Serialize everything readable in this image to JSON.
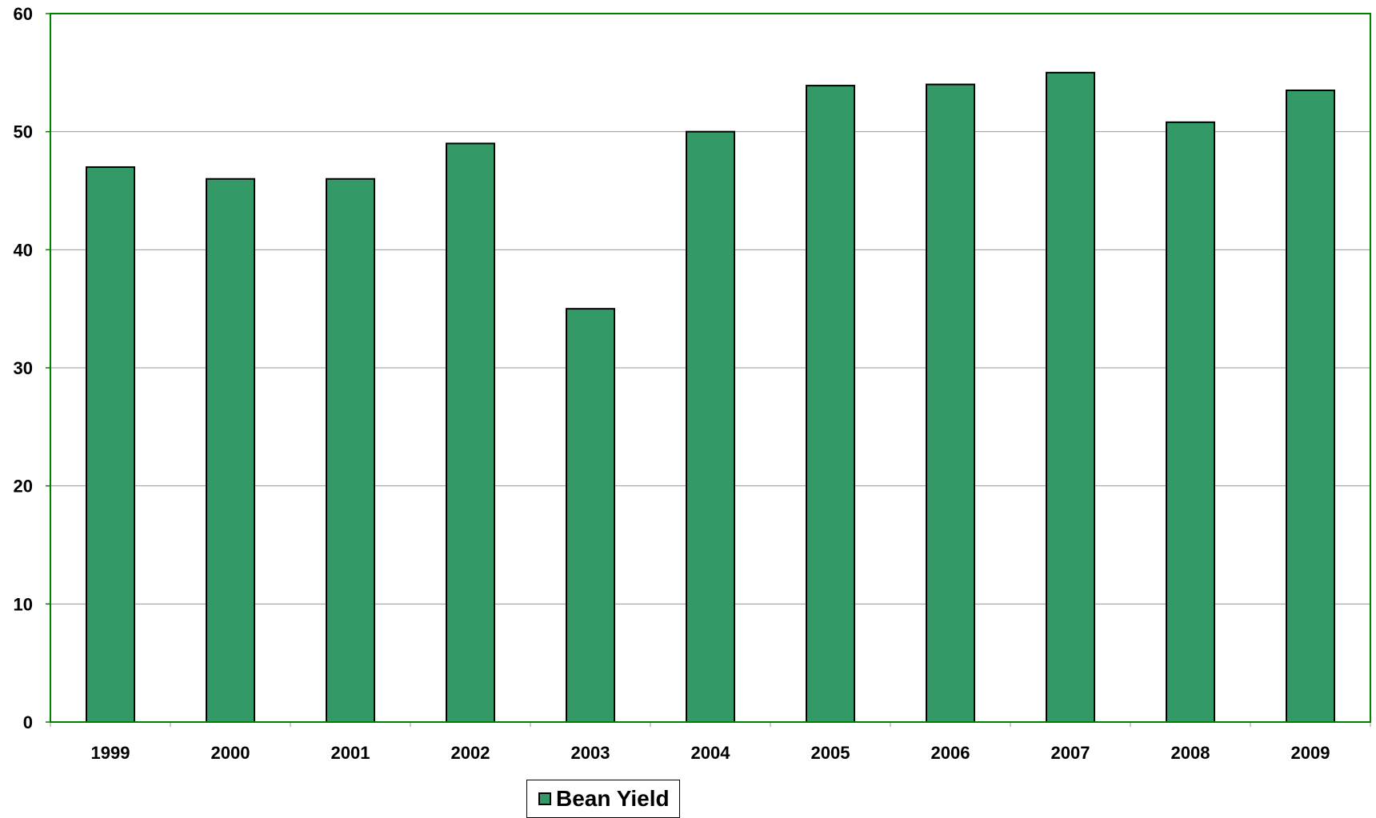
{
  "chart_data": {
    "type": "bar",
    "title": "",
    "xlabel": "",
    "ylabel": "",
    "categories": [
      "1999",
      "2000",
      "2001",
      "2002",
      "2003",
      "2004",
      "2005",
      "2006",
      "2007",
      "2008",
      "2009"
    ],
    "series": [
      {
        "name": "Bean Yield",
        "values": [
          47,
          46,
          46,
          49,
          35,
          50,
          53.9,
          54,
          55,
          50.8,
          53.5
        ]
      }
    ],
    "ylim": [
      0,
      60
    ],
    "yticks": [
      "0",
      "10",
      "20",
      "30",
      "40",
      "50",
      "60"
    ],
    "grid": true,
    "legend_position": "bottom-center"
  },
  "colors": {
    "bar_fill": "#339966",
    "bar_stroke": "#000000",
    "plot_border": "#008000",
    "gridline": "#999999"
  }
}
